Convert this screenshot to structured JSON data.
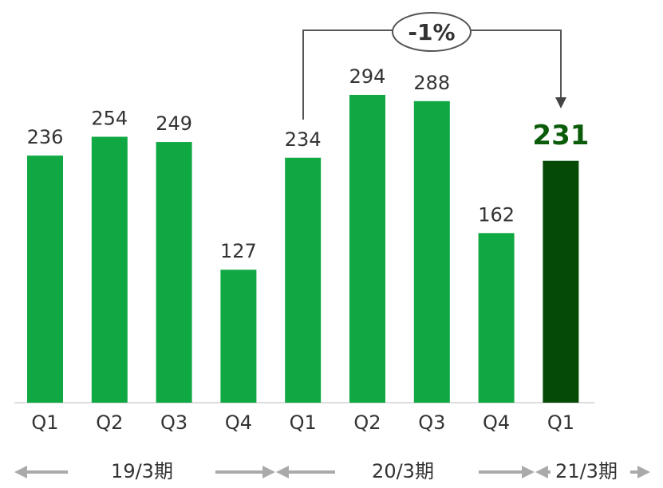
{
  "chart_data": {
    "type": "bar",
    "categories": [
      "Q1",
      "Q2",
      "Q3",
      "Q4",
      "Q1",
      "Q2",
      "Q3",
      "Q4",
      "Q1"
    ],
    "values": [
      236,
      254,
      249,
      127,
      234,
      294,
      288,
      162,
      231
    ],
    "colors": [
      "#10a843",
      "#10a843",
      "#10a843",
      "#10a843",
      "#10a843",
      "#10a843",
      "#10a843",
      "#10a843",
      "#064a08"
    ],
    "annotation": "-1%",
    "periods": [
      "19/3期",
      "20/3期",
      "21/3期"
    ]
  }
}
